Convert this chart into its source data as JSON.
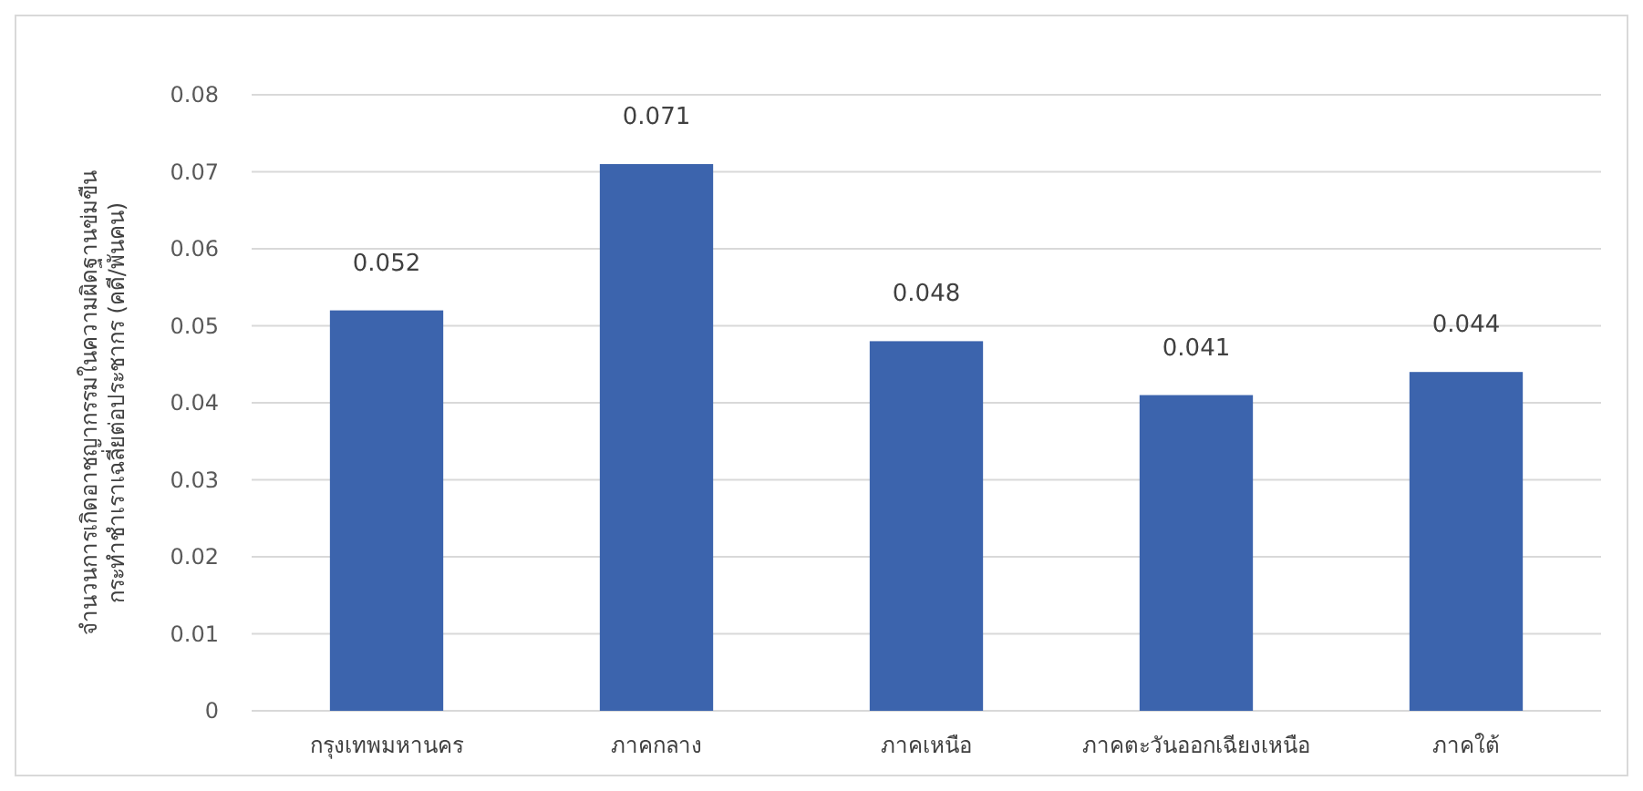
{
  "chart_data": {
    "type": "bar",
    "ylabel": "จำนวนการเกิดอาชญากรรมในความผิดฐานข่มขืน\nกระทำชำเราเฉลี่ยต่อประชากร (คดี/พันคน)",
    "categories": [
      "กรุงเทพมหานคร",
      "ภาคกลาง",
      "ภาคเหนือ",
      "ภาคตะวันออกเฉียงเหนือ",
      "ภาคใต้"
    ],
    "values": [
      0.052,
      0.071,
      0.048,
      0.041,
      0.044
    ],
    "color": "#3c64ad",
    "ylim": [
      0,
      0.08
    ],
    "yticks": [
      0,
      0.01,
      0.02,
      0.03,
      0.04,
      0.05,
      0.06,
      0.07,
      0.08
    ],
    "grid": "y",
    "data_labels": true
  }
}
